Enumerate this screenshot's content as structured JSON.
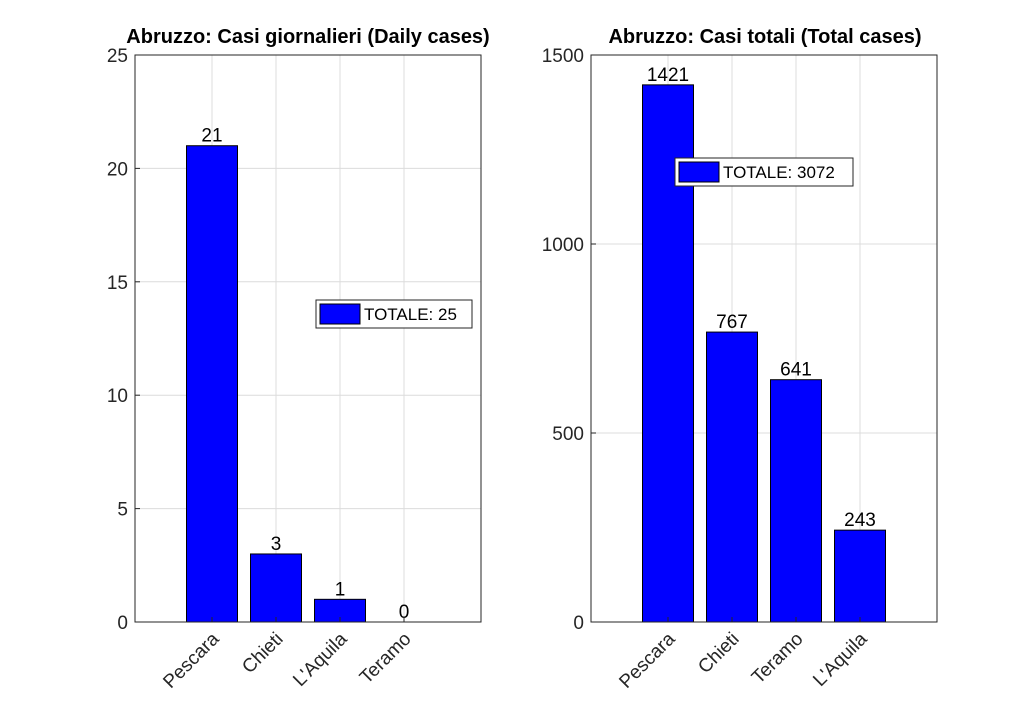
{
  "chart_data": [
    {
      "type": "bar",
      "title": "Abruzzo: Casi giornalieri (Daily cases)",
      "categories": [
        "Pescara",
        "Chieti",
        "L'Aquila",
        "Teramo"
      ],
      "values": [
        21,
        3,
        1,
        0
      ],
      "data_labels": [
        "21",
        "3",
        "1",
        "0"
      ],
      "ylim": [
        0,
        25
      ],
      "yticks": [
        0,
        5,
        10,
        15,
        20,
        25
      ],
      "legend": "TOTALE: 25",
      "legend_position": "right-middle",
      "grid": true,
      "bar_color": "#0000ff"
    },
    {
      "type": "bar",
      "title": "Abruzzo: Casi totali (Total cases)",
      "categories": [
        "Pescara",
        "Chieti",
        "Teramo",
        "L'Aquila"
      ],
      "values": [
        1421,
        767,
        641,
        243
      ],
      "data_labels": [
        "1421",
        "767",
        "641",
        "243"
      ],
      "ylim": [
        0,
        1500
      ],
      "yticks": [
        0,
        500,
        1000,
        1500
      ],
      "legend": "TOTALE: 3072",
      "legend_position": "upper-right",
      "grid": true,
      "bar_color": "#0000ff"
    }
  ]
}
